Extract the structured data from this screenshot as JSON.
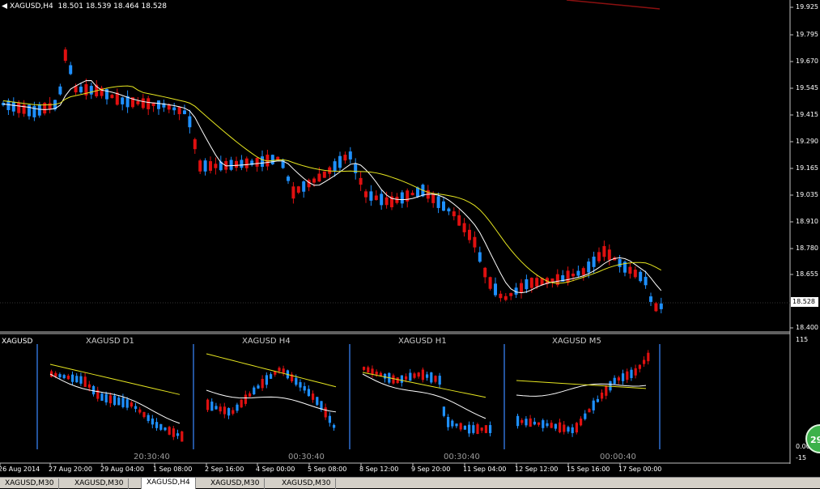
{
  "header": {
    "symbol": "XAGUSD,H4",
    "ohlc": "18.501 18.539 18.464 18.528"
  },
  "current_price": "18.528",
  "main_axis": {
    "labels": [
      "19.925",
      "19.795",
      "19.670",
      "19.545",
      "19.415",
      "19.290",
      "19.165",
      "19.035",
      "18.910",
      "18.780",
      "18.655",
      "18.528",
      "18.400"
    ]
  },
  "time_axis": [
    "26 Aug 2014",
    "27 Aug 20:00",
    "29 Aug 04:00",
    "1 Sep 08:00",
    "2 Sep 16:00",
    "4 Sep 00:00",
    "5 Sep 08:00",
    "8 Sep 12:00",
    "9 Sep 20:00",
    "11 Sep 04:00",
    "12 Sep 12:00",
    "15 Sep 16:00",
    "17 Sep 00:00"
  ],
  "indicator": {
    "name": "XAGUSD",
    "axis_top": "115",
    "axis_mid": "0.00",
    "axis_bottom": "-15",
    "panels": [
      {
        "title": "XAGUSD D1",
        "time": "20:30:40"
      },
      {
        "title": "XAGUSD H4",
        "time": "00:30:40"
      },
      {
        "title": "XAGUSD H1",
        "time": "00:30:40"
      },
      {
        "title": "XAGUSD M5",
        "time": "00:00:40"
      }
    ]
  },
  "badge": "29",
  "tabs": [
    "XAGUSD,M30",
    "XAGUSD,M30",
    "XAGUSD,H4",
    "XAGUSD,M30",
    "XAGUSD,M30"
  ],
  "active_tab": 2,
  "colors": {
    "bull": "#1e90ff",
    "bear": "#e01010",
    "ma_fast": "#ffffff",
    "ma_slow": "#e6e620",
    "grid": "#c0c0c0"
  }
}
